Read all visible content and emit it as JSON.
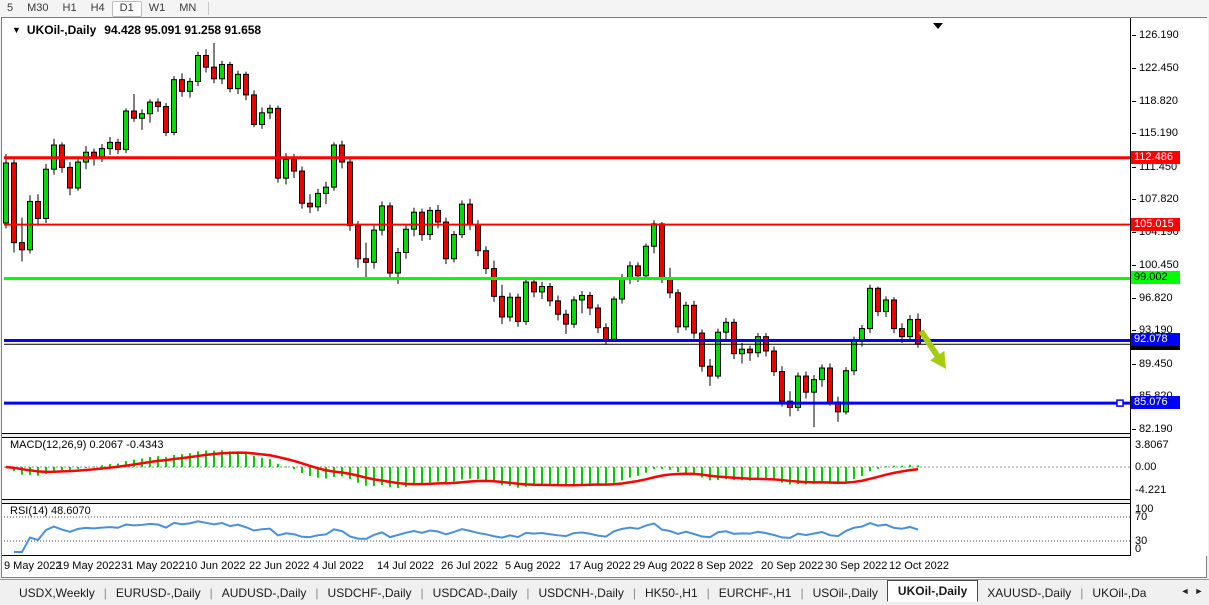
{
  "toolbar": {
    "timeframes": [
      "5",
      "M30",
      "H1",
      "H4",
      "D1",
      "W1",
      "MN"
    ],
    "active_timeframe": "D1"
  },
  "chart": {
    "symbol_label": "UKOil-,Daily",
    "ohlc_label": "94.428 95.091 91.258 91.658",
    "price_axis_labels": [
      "126.190",
      "122.450",
      "118.820",
      "115.190",
      "111.450",
      "107.820",
      "104.190",
      "100.450",
      "96.820",
      "93.190",
      "89.450",
      "85.820",
      "82.190"
    ],
    "price_tags": [
      {
        "text": "112.486",
        "price": 112.486,
        "bg": "#FF0000",
        "fg": "#FFFFFF"
      },
      {
        "text": "105.015",
        "price": 105.015,
        "bg": "#FF0000",
        "fg": "#FFFFFF"
      },
      {
        "text": "99.002",
        "price": 99.002,
        "bg": "#00FF00",
        "fg": "#000000"
      },
      {
        "text": "92.078",
        "price": 92.078,
        "bg": "#0000FF",
        "fg": "#FFFFFF"
      },
      {
        "text": "91.658",
        "price": 91.658,
        "bg": "#000000",
        "fg": "#FFFFFF"
      },
      {
        "text": "85.076",
        "price": 85.076,
        "bg": "#0000FF",
        "fg": "#FFFFFF"
      }
    ],
    "hlines": [
      {
        "price": 112.486,
        "color": "#FF0000",
        "width": 3
      },
      {
        "price": 105.015,
        "color": "#FF0000",
        "width": 2
      },
      {
        "price": 99.002,
        "color": "#00FF00",
        "width": 3
      },
      {
        "price": 92.078,
        "color": "#0000FF",
        "width": 3
      },
      {
        "price": 91.658,
        "color": "#000000",
        "width": 1
      },
      {
        "price": 85.076,
        "color": "#0000FF",
        "width": 3,
        "handle": true
      }
    ]
  },
  "chart_data": {
    "type": "candlestick",
    "symbol": "UKOil-",
    "timeframe": "Daily",
    "ylim": [
      82.19,
      126.19
    ],
    "up_color": "#00DC00",
    "down_color": "#EE0000",
    "x_labels": [
      {
        "index": 0,
        "text": "9 May 2022"
      },
      {
        "index": 8,
        "text": "19 May 2022"
      },
      {
        "index": 16,
        "text": "31 May 2022"
      },
      {
        "index": 24,
        "text": "10 Jun 2022"
      },
      {
        "index": 32,
        "text": "22 Jun 2022"
      },
      {
        "index": 40,
        "text": "4 Jul 2022"
      },
      {
        "index": 48,
        "text": "14 Jul 2022"
      },
      {
        "index": 56,
        "text": "26 Jul 2022"
      },
      {
        "index": 64,
        "text": "5 Aug 2022"
      },
      {
        "index": 72,
        "text": "17 Aug 2022"
      },
      {
        "index": 80,
        "text": "29 Aug 2022"
      },
      {
        "index": 88,
        "text": "8 Sep 2022"
      },
      {
        "index": 96,
        "text": "20 Sep 2022"
      },
      {
        "index": 104,
        "text": "30 Sep 2022"
      },
      {
        "index": 112,
        "text": "12 Oct 2022"
      }
    ],
    "ohlc": [
      [
        105.2,
        112.9,
        104.6,
        111.9
      ],
      [
        111.9,
        112.3,
        101.9,
        103.0
      ],
      [
        103.0,
        105.8,
        100.9,
        102.2
      ],
      [
        102.2,
        108.3,
        101.8,
        107.6
      ],
      [
        107.6,
        108.4,
        104.9,
        105.7
      ],
      [
        105.7,
        111.8,
        105.2,
        111.2
      ],
      [
        111.2,
        114.6,
        110.6,
        113.9
      ],
      [
        113.9,
        114.2,
        110.8,
        111.4
      ],
      [
        111.4,
        112.0,
        108.3,
        109.1
      ],
      [
        109.1,
        112.5,
        108.8,
        112.0
      ],
      [
        112.0,
        113.8,
        111.2,
        113.1
      ],
      [
        113.1,
        113.5,
        111.6,
        112.6
      ],
      [
        112.6,
        114.0,
        112.0,
        113.5
      ],
      [
        113.5,
        114.8,
        112.8,
        114.2
      ],
      [
        114.2,
        114.6,
        112.9,
        113.4
      ],
      [
        113.4,
        118.0,
        113.0,
        117.7
      ],
      [
        117.7,
        119.6,
        116.5,
        116.9
      ],
      [
        116.9,
        117.9,
        115.6,
        117.4
      ],
      [
        117.4,
        119.0,
        116.4,
        118.7
      ],
      [
        118.7,
        119.1,
        117.6,
        118.2
      ],
      [
        118.2,
        118.6,
        114.9,
        115.3
      ],
      [
        115.3,
        121.6,
        115.0,
        121.2
      ],
      [
        121.2,
        121.9,
        119.3,
        119.9
      ],
      [
        119.9,
        121.4,
        119.2,
        121.0
      ],
      [
        121.0,
        124.3,
        120.5,
        123.9
      ],
      [
        123.9,
        124.6,
        122.0,
        122.6
      ],
      [
        122.6,
        125.3,
        120.8,
        121.3
      ],
      [
        121.3,
        123.3,
        120.7,
        122.9
      ],
      [
        122.9,
        123.2,
        119.8,
        120.2
      ],
      [
        120.2,
        122.2,
        119.6,
        121.8
      ],
      [
        121.8,
        122.1,
        118.9,
        119.5
      ],
      [
        119.5,
        120.0,
        115.9,
        116.2
      ],
      [
        116.2,
        118.1,
        115.7,
        117.5
      ],
      [
        117.5,
        118.4,
        116.8,
        118.0
      ],
      [
        118.0,
        118.3,
        109.7,
        110.2
      ],
      [
        110.2,
        113.0,
        109.5,
        112.3
      ],
      [
        112.3,
        112.9,
        110.2,
        111.0
      ],
      [
        111.0,
        111.5,
        106.8,
        107.4
      ],
      [
        107.4,
        108.4,
        106.3,
        107.0
      ],
      [
        107.0,
        109.0,
        106.5,
        108.5
      ],
      [
        108.5,
        109.8,
        107.3,
        109.2
      ],
      [
        109.2,
        114.2,
        108.8,
        113.9
      ],
      [
        113.9,
        114.4,
        111.3,
        112.0
      ],
      [
        112.0,
        112.4,
        104.3,
        104.9
      ],
      [
        104.9,
        105.4,
        100.2,
        101.2
      ],
      [
        101.2,
        103.0,
        98.9,
        100.8
      ],
      [
        100.8,
        104.9,
        100.1,
        104.4
      ],
      [
        104.4,
        107.6,
        103.8,
        107.1
      ],
      [
        107.1,
        107.5,
        98.9,
        99.6
      ],
      [
        99.6,
        102.4,
        98.4,
        101.9
      ],
      [
        101.9,
        104.9,
        101.2,
        104.5
      ],
      [
        104.5,
        106.9,
        103.7,
        106.4
      ],
      [
        106.4,
        106.8,
        103.2,
        103.9
      ],
      [
        103.9,
        107.0,
        103.3,
        106.6
      ],
      [
        106.6,
        107.2,
        104.6,
        105.3
      ],
      [
        105.3,
        105.8,
        100.6,
        101.2
      ],
      [
        101.2,
        104.3,
        100.8,
        103.9
      ],
      [
        103.9,
        107.7,
        103.5,
        107.3
      ],
      [
        107.3,
        107.9,
        104.4,
        105.0
      ],
      [
        105.0,
        105.5,
        101.5,
        102.1
      ],
      [
        102.1,
        102.6,
        99.5,
        100.1
      ],
      [
        100.1,
        101.0,
        96.4,
        97.0
      ],
      [
        97.0,
        98.3,
        93.9,
        94.7
      ],
      [
        94.7,
        97.4,
        94.2,
        96.9
      ],
      [
        96.9,
        97.3,
        93.6,
        94.2
      ],
      [
        94.2,
        99.0,
        93.8,
        98.6
      ],
      [
        98.6,
        99.1,
        96.9,
        97.5
      ],
      [
        97.5,
        98.6,
        96.7,
        98.1
      ],
      [
        98.1,
        98.5,
        95.9,
        96.5
      ],
      [
        96.5,
        97.1,
        94.3,
        95.0
      ],
      [
        95.0,
        95.5,
        92.8,
        93.9
      ],
      [
        93.9,
        97.0,
        93.5,
        96.6
      ],
      [
        96.6,
        97.6,
        95.1,
        97.1
      ],
      [
        97.1,
        97.5,
        94.9,
        95.7
      ],
      [
        95.7,
        96.1,
        92.9,
        93.5
      ],
      [
        93.5,
        94.0,
        91.6,
        92.2
      ],
      [
        92.2,
        97.0,
        91.9,
        96.7
      ],
      [
        96.7,
        99.5,
        96.2,
        99.1
      ],
      [
        99.1,
        100.9,
        98.4,
        100.4
      ],
      [
        100.4,
        100.8,
        98.6,
        99.3
      ],
      [
        99.3,
        102.9,
        98.9,
        102.6
      ],
      [
        102.6,
        105.5,
        101.8,
        105.1
      ],
      [
        105.1,
        105.3,
        98.5,
        99.0
      ],
      [
        99.0,
        100.2,
        96.8,
        97.4
      ],
      [
        97.4,
        97.8,
        92.9,
        93.6
      ],
      [
        93.6,
        96.4,
        93.2,
        96.0
      ],
      [
        96.0,
        96.5,
        92.3,
        92.9
      ],
      [
        92.9,
        93.3,
        88.6,
        89.2
      ],
      [
        89.2,
        90.0,
        87.0,
        88.1
      ],
      [
        88.1,
        93.4,
        87.8,
        93.0
      ],
      [
        93.0,
        94.6,
        92.2,
        94.1
      ],
      [
        94.1,
        94.5,
        90.0,
        90.6
      ],
      [
        90.6,
        91.8,
        89.5,
        91.1
      ],
      [
        91.1,
        91.5,
        89.8,
        90.7
      ],
      [
        90.7,
        92.9,
        90.2,
        92.5
      ],
      [
        92.5,
        92.9,
        90.3,
        90.9
      ],
      [
        90.9,
        91.4,
        88.1,
        88.6
      ],
      [
        88.6,
        89.2,
        84.7,
        85.3
      ],
      [
        85.3,
        86.4,
        83.6,
        84.6
      ],
      [
        84.6,
        88.5,
        84.2,
        88.1
      ],
      [
        88.1,
        88.6,
        85.6,
        86.3
      ],
      [
        86.3,
        88.2,
        82.4,
        87.7
      ],
      [
        87.7,
        89.4,
        86.9,
        89.0
      ],
      [
        89.0,
        89.5,
        84.8,
        85.2
      ],
      [
        85.2,
        85.8,
        83.0,
        84.1
      ],
      [
        84.1,
        89.1,
        83.8,
        88.7
      ],
      [
        88.7,
        92.5,
        88.2,
        92.1
      ],
      [
        92.1,
        93.8,
        91.4,
        93.4
      ],
      [
        93.4,
        98.3,
        92.9,
        97.9
      ],
      [
        97.9,
        98.1,
        94.8,
        95.3
      ],
      [
        95.3,
        97.0,
        94.7,
        96.6
      ],
      [
        96.6,
        96.9,
        92.9,
        93.4
      ],
      [
        93.4,
        94.0,
        91.8,
        92.5
      ],
      [
        92.5,
        94.9,
        92.2,
        94.4
      ],
      [
        94.428,
        95.091,
        91.258,
        91.658
      ]
    ],
    "indicators": {
      "macd": {
        "label": "MACD(12,26,9) 0.2067 -0.4343",
        "params": [
          12,
          26,
          9
        ],
        "value": 0.2067,
        "signal": -0.4343,
        "axis": [
          "3.8067",
          "0.00",
          "-4.221"
        ],
        "ylim": [
          -4.221,
          3.8067
        ],
        "histogram_color": "#00CC00",
        "signal_color": "#FF0000"
      },
      "rsi": {
        "label": "RSI(14) 48.6070",
        "period": 14,
        "value": 48.607,
        "axis": [
          "100",
          "70",
          "30",
          "0"
        ],
        "levels": [
          70,
          30
        ],
        "color": "#4A90D9"
      }
    },
    "annotations": [
      {
        "type": "arrow-down-right",
        "near_index": 114,
        "price": 91.0,
        "color": "#A6CC0F"
      }
    ]
  },
  "tabs": {
    "items": [
      {
        "label": "USDX,Weekly"
      },
      {
        "label": "EURUSD-,Daily"
      },
      {
        "label": "AUDUSD-,Daily"
      },
      {
        "label": "USDCHF-,Daily"
      },
      {
        "label": "USDCAD-,Daily"
      },
      {
        "label": "USDCNH-,Daily"
      },
      {
        "label": "HK50-,H1"
      },
      {
        "label": "EURCHF-,H1"
      },
      {
        "label": "USOil-,Daily"
      },
      {
        "label": "UKOil-,Daily",
        "active": true
      },
      {
        "label": "XAUUSD-,Daily"
      },
      {
        "label": "UKOil-,Da"
      }
    ],
    "scroll_left": "◄",
    "scroll_right": "►"
  }
}
